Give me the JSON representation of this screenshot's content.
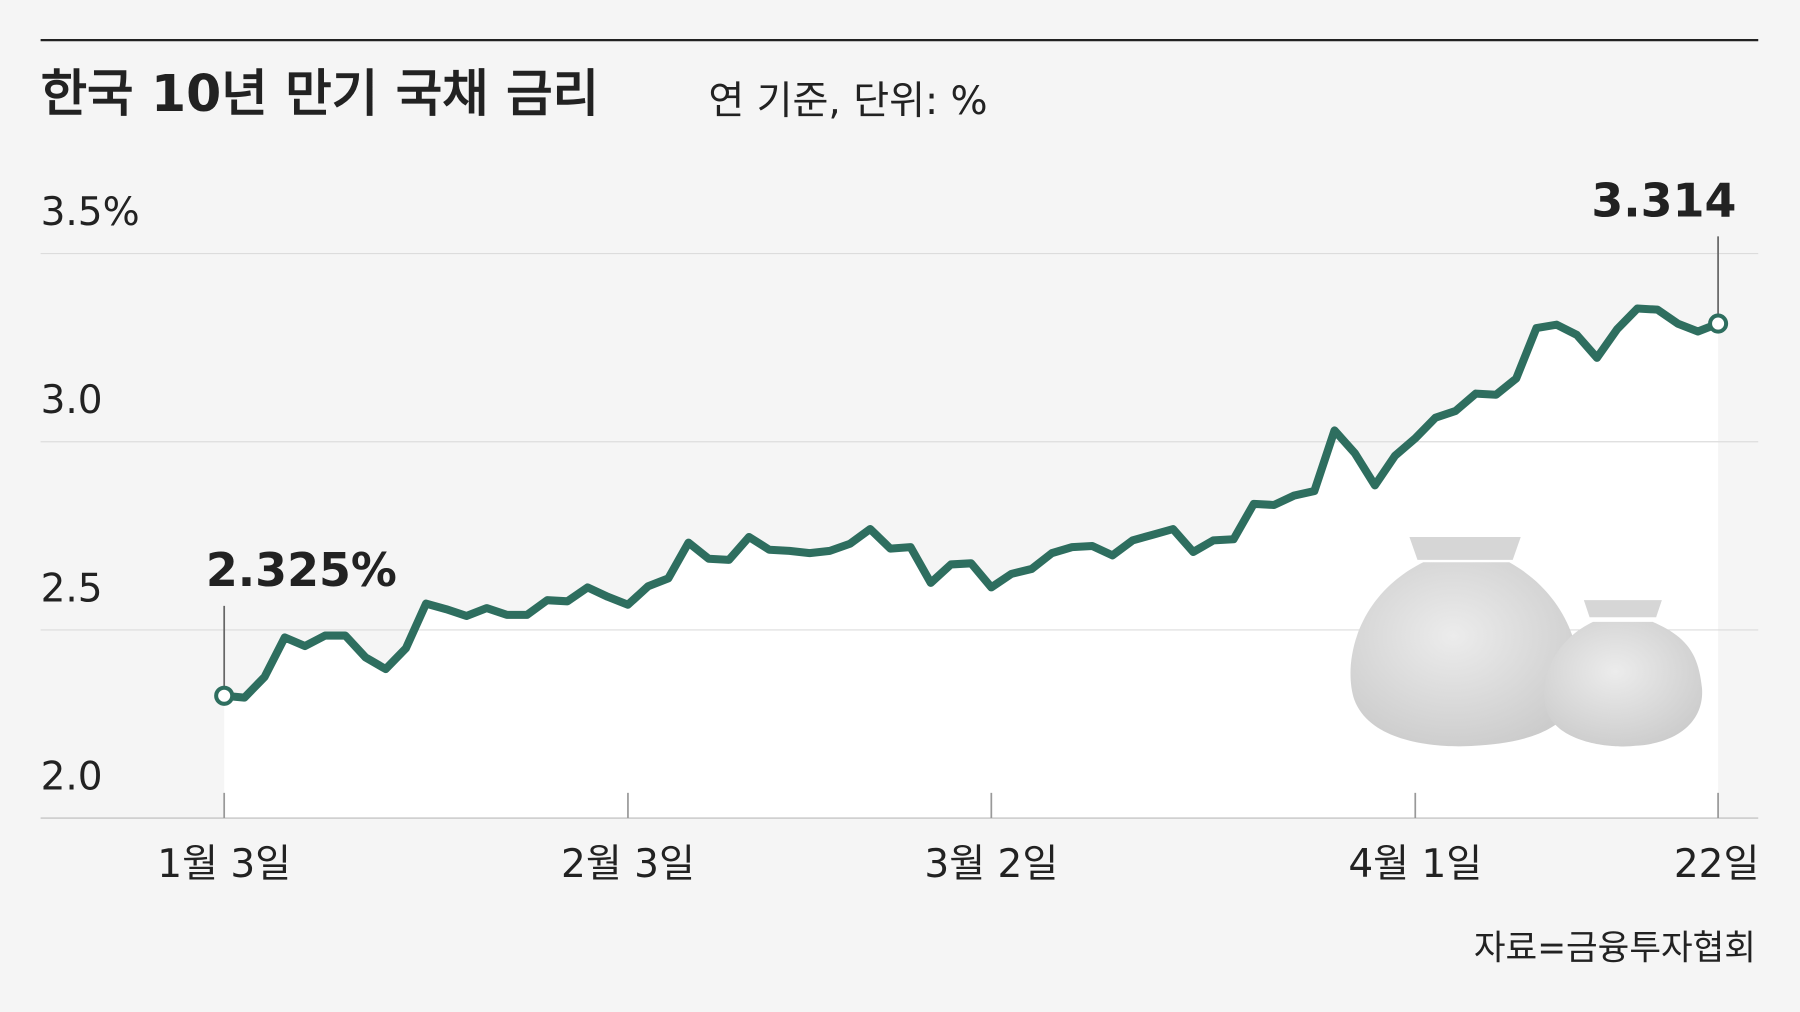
{
  "chart_data": {
    "type": "line",
    "title": "한국 10년 만기 국채 금리",
    "subtitle": "연 기준, 단위: %",
    "source": "자료=금융투자협회",
    "color": "#2e6e5f",
    "categories": [
      "1월 3일",
      null,
      null,
      null,
      null,
      null,
      null,
      null,
      null,
      null,
      null,
      null,
      null,
      null,
      null,
      null,
      null,
      null,
      null,
      null,
      "2월 3일",
      null,
      null,
      null,
      null,
      null,
      null,
      null,
      null,
      null,
      null,
      null,
      null,
      null,
      null,
      null,
      null,
      null,
      "3월 2일",
      null,
      null,
      null,
      null,
      null,
      null,
      null,
      null,
      null,
      null,
      null,
      null,
      null,
      null,
      null,
      null,
      null,
      null,
      null,
      null,
      "4월 1일",
      null,
      null,
      null,
      null,
      null,
      null,
      null,
      null,
      null,
      null,
      null,
      null,
      null,
      null,
      "22일"
    ],
    "values": [
      2.325,
      2.32,
      2.375,
      2.48,
      2.457,
      2.485,
      2.485,
      2.427,
      2.396,
      2.451,
      2.57,
      2.555,
      2.537,
      2.558,
      2.54,
      2.54,
      2.579,
      2.576,
      2.613,
      2.588,
      2.567,
      2.616,
      2.637,
      2.732,
      2.689,
      2.686,
      2.747,
      2.713,
      2.71,
      2.704,
      2.71,
      2.729,
      2.768,
      2.716,
      2.72,
      2.625,
      2.674,
      2.677,
      2.613,
      2.649,
      2.662,
      2.704,
      2.72,
      2.723,
      2.698,
      2.738,
      2.753,
      2.768,
      2.707,
      2.738,
      2.741,
      2.835,
      2.832,
      2.857,
      2.869,
      3.03,
      2.97,
      2.884,
      2.963,
      3.009,
      3.064,
      3.082,
      3.128,
      3.125,
      3.168,
      3.302,
      3.311,
      3.284,
      3.223,
      3.299,
      3.354,
      3.351,
      3.314,
      3.293,
      3.314
    ],
    "value_labels": [
      "2.325%",
      null,
      null,
      null,
      null,
      null,
      null,
      null,
      null,
      null,
      null,
      null,
      null,
      null,
      null,
      null,
      null,
      null,
      null,
      null,
      null,
      null,
      null,
      null,
      null,
      null,
      null,
      null,
      null,
      null,
      null,
      null,
      null,
      null,
      null,
      null,
      null,
      null,
      null,
      null,
      null,
      null,
      null,
      null,
      null,
      null,
      null,
      null,
      null,
      null,
      null,
      null,
      null,
      null,
      null,
      null,
      null,
      null,
      null,
      null,
      null,
      null,
      null,
      null,
      null,
      null,
      null,
      null,
      null,
      null,
      null,
      null,
      null,
      null,
      "3.314"
    ],
    "ylim": [
      2.0,
      3.5
    ],
    "yticks": [
      {
        "value": 2.0,
        "label": "2.0"
      },
      2.5,
      {
        "value": 3.0,
        "label": "3.0"
      },
      {
        "value": 3.5,
        "label": "3.5%"
      }
    ],
    "grid": true
  }
}
